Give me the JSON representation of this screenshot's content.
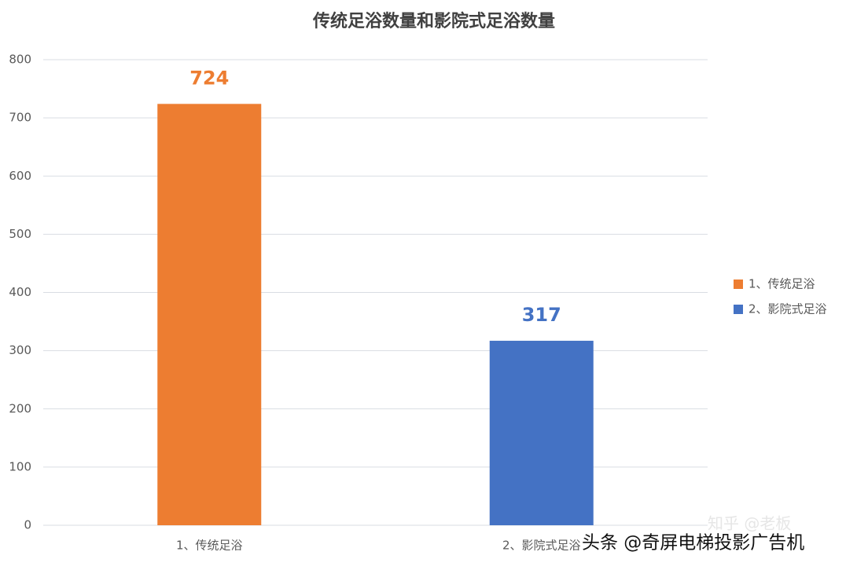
{
  "chart_data": {
    "type": "bar",
    "title": "传统足浴数量和影院式足浴数量",
    "categories": [
      "1、传统足浴",
      "2、影院式足浴"
    ],
    "values": [
      724,
      317
    ],
    "colors": [
      "#ed7d31",
      "#4472c4"
    ],
    "ylim": [
      0,
      800
    ],
    "yticks": [
      0,
      100,
      200,
      300,
      400,
      500,
      600,
      700,
      800
    ],
    "grid": true,
    "legend": "right",
    "value_labels_shown": true
  },
  "watermarks": [
    "知乎 @老板",
    "头条 @奇屏电梯投影广告机"
  ]
}
